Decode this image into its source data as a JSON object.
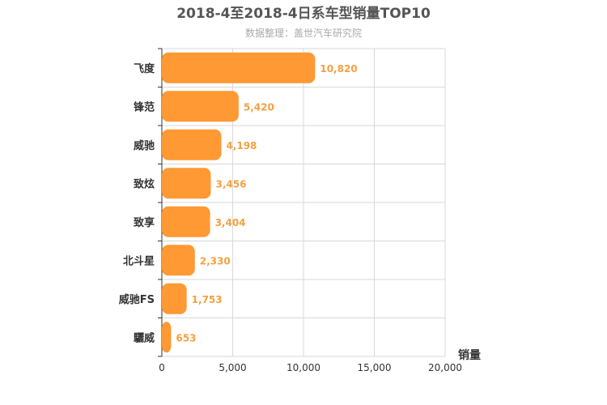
{
  "chart_data": {
    "type": "bar",
    "orientation": "horizontal",
    "title": "2018-4至2018-4日系车型销量TOP10",
    "subtitle": "数据整理：盖世汽车研究院",
    "xlabel": "销量",
    "ylabel": "",
    "categories": [
      "飞度",
      "锋范",
      "威驰",
      "致炫",
      "致享",
      "北斗星",
      "威驰FS",
      "驪威"
    ],
    "values": [
      10820,
      5420,
      4198,
      3456,
      3404,
      2330,
      1753,
      653
    ],
    "value_labels": [
      "10,820",
      "5,420",
      "4,198",
      "3,456",
      "3,404",
      "2,330",
      "1,753",
      "653"
    ],
    "xlim": [
      0,
      20000
    ],
    "xticks": [
      0,
      5000,
      10000,
      15000,
      20000
    ],
    "xtick_labels": [
      "0",
      "5,000",
      "10,000",
      "15,000",
      "20,000"
    ],
    "grid": true,
    "bar_color": "#ff9933",
    "label_color": "#f5a040"
  }
}
